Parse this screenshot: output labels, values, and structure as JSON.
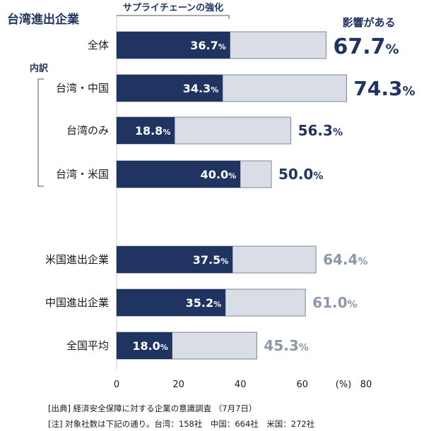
{
  "chart_data": {
    "type": "bar",
    "title": "台湾進出企業",
    "stack_label": "サプライチェーンの強化",
    "total_label": "影響がある",
    "breakdown_label": "内訳",
    "unit": "%",
    "xlim": [
      0,
      80
    ],
    "xticks": [
      0,
      20,
      40,
      60,
      80
    ],
    "categories": [
      "全体",
      "台湾・中国",
      "台湾のみ",
      "台湾・米国",
      "米国進出企業",
      "中国進出企業",
      "全国平均"
    ],
    "series": [
      {
        "name": "サプライチェーンの強化",
        "values": [
          36.7,
          34.3,
          18.8,
          40.0,
          37.5,
          35.2,
          18.0
        ]
      },
      {
        "name": "影響がある",
        "values": [
          67.7,
          74.3,
          56.3,
          50.0,
          64.4,
          61.0,
          45.3
        ]
      }
    ],
    "colors": {
      "inner_bar": "#1f3460",
      "outer_bar": "#d9dde6",
      "bar_border": "#7c8696",
      "emphasis_text": "#1f3460",
      "muted_text": "#8a97ad"
    }
  },
  "footnotes": [
    "[出典] 経済安全保障に対する企業の意識調査 （7月7日）",
    "[注] 対象社数は下記の通り。台湾：158社　中国：664社　米国：272社"
  ]
}
